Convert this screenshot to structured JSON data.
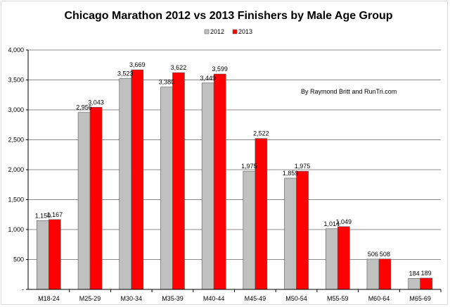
{
  "chart_data": {
    "type": "bar",
    "title": "Chicago Marathon 2012 vs 2013 Finishers by Male Age Group",
    "xlabel": "",
    "ylabel": "",
    "categories": [
      "M18-24",
      "M25-29",
      "M30-34",
      "M35-39",
      "M40-44",
      "M45-49",
      "M50-54",
      "M55-59",
      "M60-64",
      "M65-69"
    ],
    "series": [
      {
        "name": "2012",
        "color": "#c0c0c0",
        "values": [
          1150,
          2956,
          3523,
          3380,
          3449,
          1975,
          1859,
          1014,
          506,
          184
        ]
      },
      {
        "name": "2013",
        "color": "#ff0000",
        "values": [
          1167,
          3043,
          3669,
          3622,
          3599,
          2522,
          1975,
          1049,
          508,
          189
        ]
      }
    ],
    "data_labels": [
      [
        "1,150",
        "2,956",
        "3,523",
        "3,380",
        "3,449",
        "1,975",
        "1,859",
        "1,014",
        "506",
        "184"
      ],
      [
        "1,167",
        "3,043",
        "3,669",
        "3,622",
        "3,599",
        "2,522",
        "1,975",
        "1,049",
        "508",
        "189"
      ]
    ],
    "ylim": [
      0,
      4000
    ],
    "yticks": [
      0,
      500,
      1000,
      1500,
      2000,
      2500,
      3000,
      3500,
      4000
    ],
    "ytick_labels": [
      "-",
      "500",
      "1,000",
      "1,500",
      "2,000",
      "2,500",
      "3,000",
      "3,500",
      "4,000"
    ],
    "grid": true,
    "legend_position": "top-center",
    "annotation": "By Raymond Britt and RunTri.com"
  }
}
